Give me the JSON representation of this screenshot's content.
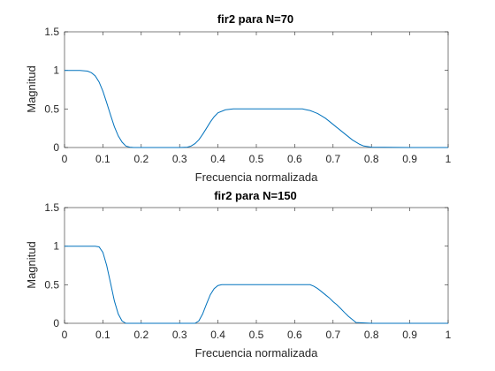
{
  "chart_data": [
    {
      "type": "line",
      "title": "fir2 para N=70",
      "xlabel": "Frecuencia normalizada",
      "ylabel": "Magnitud",
      "xlim": [
        0,
        1
      ],
      "ylim": [
        0,
        1.5
      ],
      "xticks": [
        "0",
        "0.1",
        "0.2",
        "0.3",
        "0.4",
        "0.5",
        "0.6",
        "0.7",
        "0.8",
        "0.9",
        "1"
      ],
      "yticks": [
        "0",
        "0.5",
        "1",
        "1.5"
      ],
      "grid": false,
      "line_color": "#0072BD",
      "series": [
        {
          "x": [
            0,
            0.02,
            0.04,
            0.06,
            0.07,
            0.08,
            0.09,
            0.1,
            0.11,
            0.12,
            0.13,
            0.14,
            0.15,
            0.16,
            0.17,
            0.18,
            0.2,
            0.25,
            0.3,
            0.32,
            0.33,
            0.34,
            0.35,
            0.36,
            0.37,
            0.38,
            0.39,
            0.4,
            0.42,
            0.44,
            0.5,
            0.6,
            0.62,
            0.63,
            0.64,
            0.65,
            0.66,
            0.67,
            0.68,
            0.69,
            0.7,
            0.71,
            0.72,
            0.73,
            0.74,
            0.75,
            0.76,
            0.77,
            0.78,
            0.8,
            0.9,
            1.0
          ],
          "y": [
            1.0,
            1.0,
            1.0,
            0.99,
            0.97,
            0.93,
            0.85,
            0.73,
            0.58,
            0.42,
            0.27,
            0.15,
            0.07,
            0.02,
            0.005,
            0,
            0,
            0,
            0,
            0.005,
            0.02,
            0.05,
            0.1,
            0.17,
            0.25,
            0.33,
            0.4,
            0.45,
            0.49,
            0.5,
            0.5,
            0.5,
            0.5,
            0.49,
            0.48,
            0.46,
            0.44,
            0.41,
            0.38,
            0.34,
            0.3,
            0.26,
            0.22,
            0.18,
            0.14,
            0.1,
            0.07,
            0.04,
            0.02,
            0.005,
            0,
            0
          ]
        }
      ]
    },
    {
      "type": "line",
      "title": "fir2 para N=150",
      "xlabel": "Frecuencia normalizada",
      "ylabel": "Magnitud",
      "xlim": [
        0,
        1
      ],
      "ylim": [
        0,
        1.5
      ],
      "xticks": [
        "0",
        "0.1",
        "0.2",
        "0.3",
        "0.4",
        "0.5",
        "0.6",
        "0.7",
        "0.8",
        "0.9",
        "1"
      ],
      "yticks": [
        "0",
        "0.5",
        "1",
        "1.5"
      ],
      "grid": false,
      "line_color": "#0072BD",
      "series": [
        {
          "x": [
            0,
            0.05,
            0.08,
            0.09,
            0.1,
            0.11,
            0.12,
            0.13,
            0.14,
            0.15,
            0.16,
            0.2,
            0.3,
            0.34,
            0.35,
            0.36,
            0.37,
            0.38,
            0.39,
            0.4,
            0.41,
            0.5,
            0.6,
            0.64,
            0.65,
            0.66,
            0.67,
            0.68,
            0.69,
            0.7,
            0.71,
            0.72,
            0.73,
            0.74,
            0.75,
            0.76,
            0.8,
            0.9,
            1.0
          ],
          "y": [
            1.0,
            1.0,
            1.0,
            0.99,
            0.92,
            0.75,
            0.52,
            0.29,
            0.12,
            0.03,
            0,
            0,
            0,
            0,
            0.03,
            0.12,
            0.25,
            0.37,
            0.45,
            0.49,
            0.5,
            0.5,
            0.5,
            0.5,
            0.48,
            0.45,
            0.41,
            0.37,
            0.33,
            0.28,
            0.24,
            0.19,
            0.14,
            0.09,
            0.05,
            0.01,
            0,
            0,
            0
          ]
        }
      ]
    }
  ]
}
